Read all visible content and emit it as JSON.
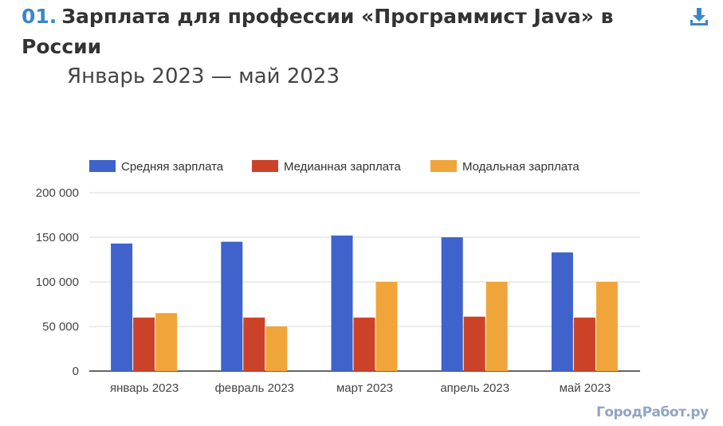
{
  "header": {
    "number": "01.",
    "title": "Зарплата для профессии «Программист Java» в России",
    "subtitle": "Январь 2023 — май 2023",
    "download_icon": "download-icon"
  },
  "watermark": "ГородРабот.ру",
  "colors": {
    "series_avg": "#3f63cb",
    "series_median": "#cc4229",
    "series_modal": "#f0a53a",
    "gridline": "#d9d9d9",
    "baseline": "#333333",
    "title_number": "#3a87c8"
  },
  "chart_data": {
    "type": "bar",
    "title": "Зарплата для профессии «Программист Java» в России",
    "subtitle": "Январь 2023 — май 2023",
    "categories": [
      "январь 2023",
      "февраль 2023",
      "март 2023",
      "апрель 2023",
      "май 2023"
    ],
    "series": [
      {
        "name": "Средняя зарплата",
        "color": "#3f63cb",
        "values": [
          143000,
          145000,
          152000,
          150000,
          133000
        ]
      },
      {
        "name": "Медианная зарплата",
        "color": "#cc4229",
        "values": [
          60000,
          60000,
          60000,
          61000,
          60000
        ]
      },
      {
        "name": "Модальная зарплата",
        "color": "#f0a53a",
        "values": [
          65000,
          50000,
          100000,
          100000,
          100000
        ]
      }
    ],
    "yticks": [
      0,
      50000,
      100000,
      150000,
      200000
    ],
    "ytick_labels": [
      "0",
      "50 000",
      "100 000",
      "150 000",
      "200 000"
    ],
    "ylim": [
      0,
      200000
    ],
    "xlabel": "",
    "ylabel": "",
    "grid": true,
    "legend_position": "top-left"
  }
}
